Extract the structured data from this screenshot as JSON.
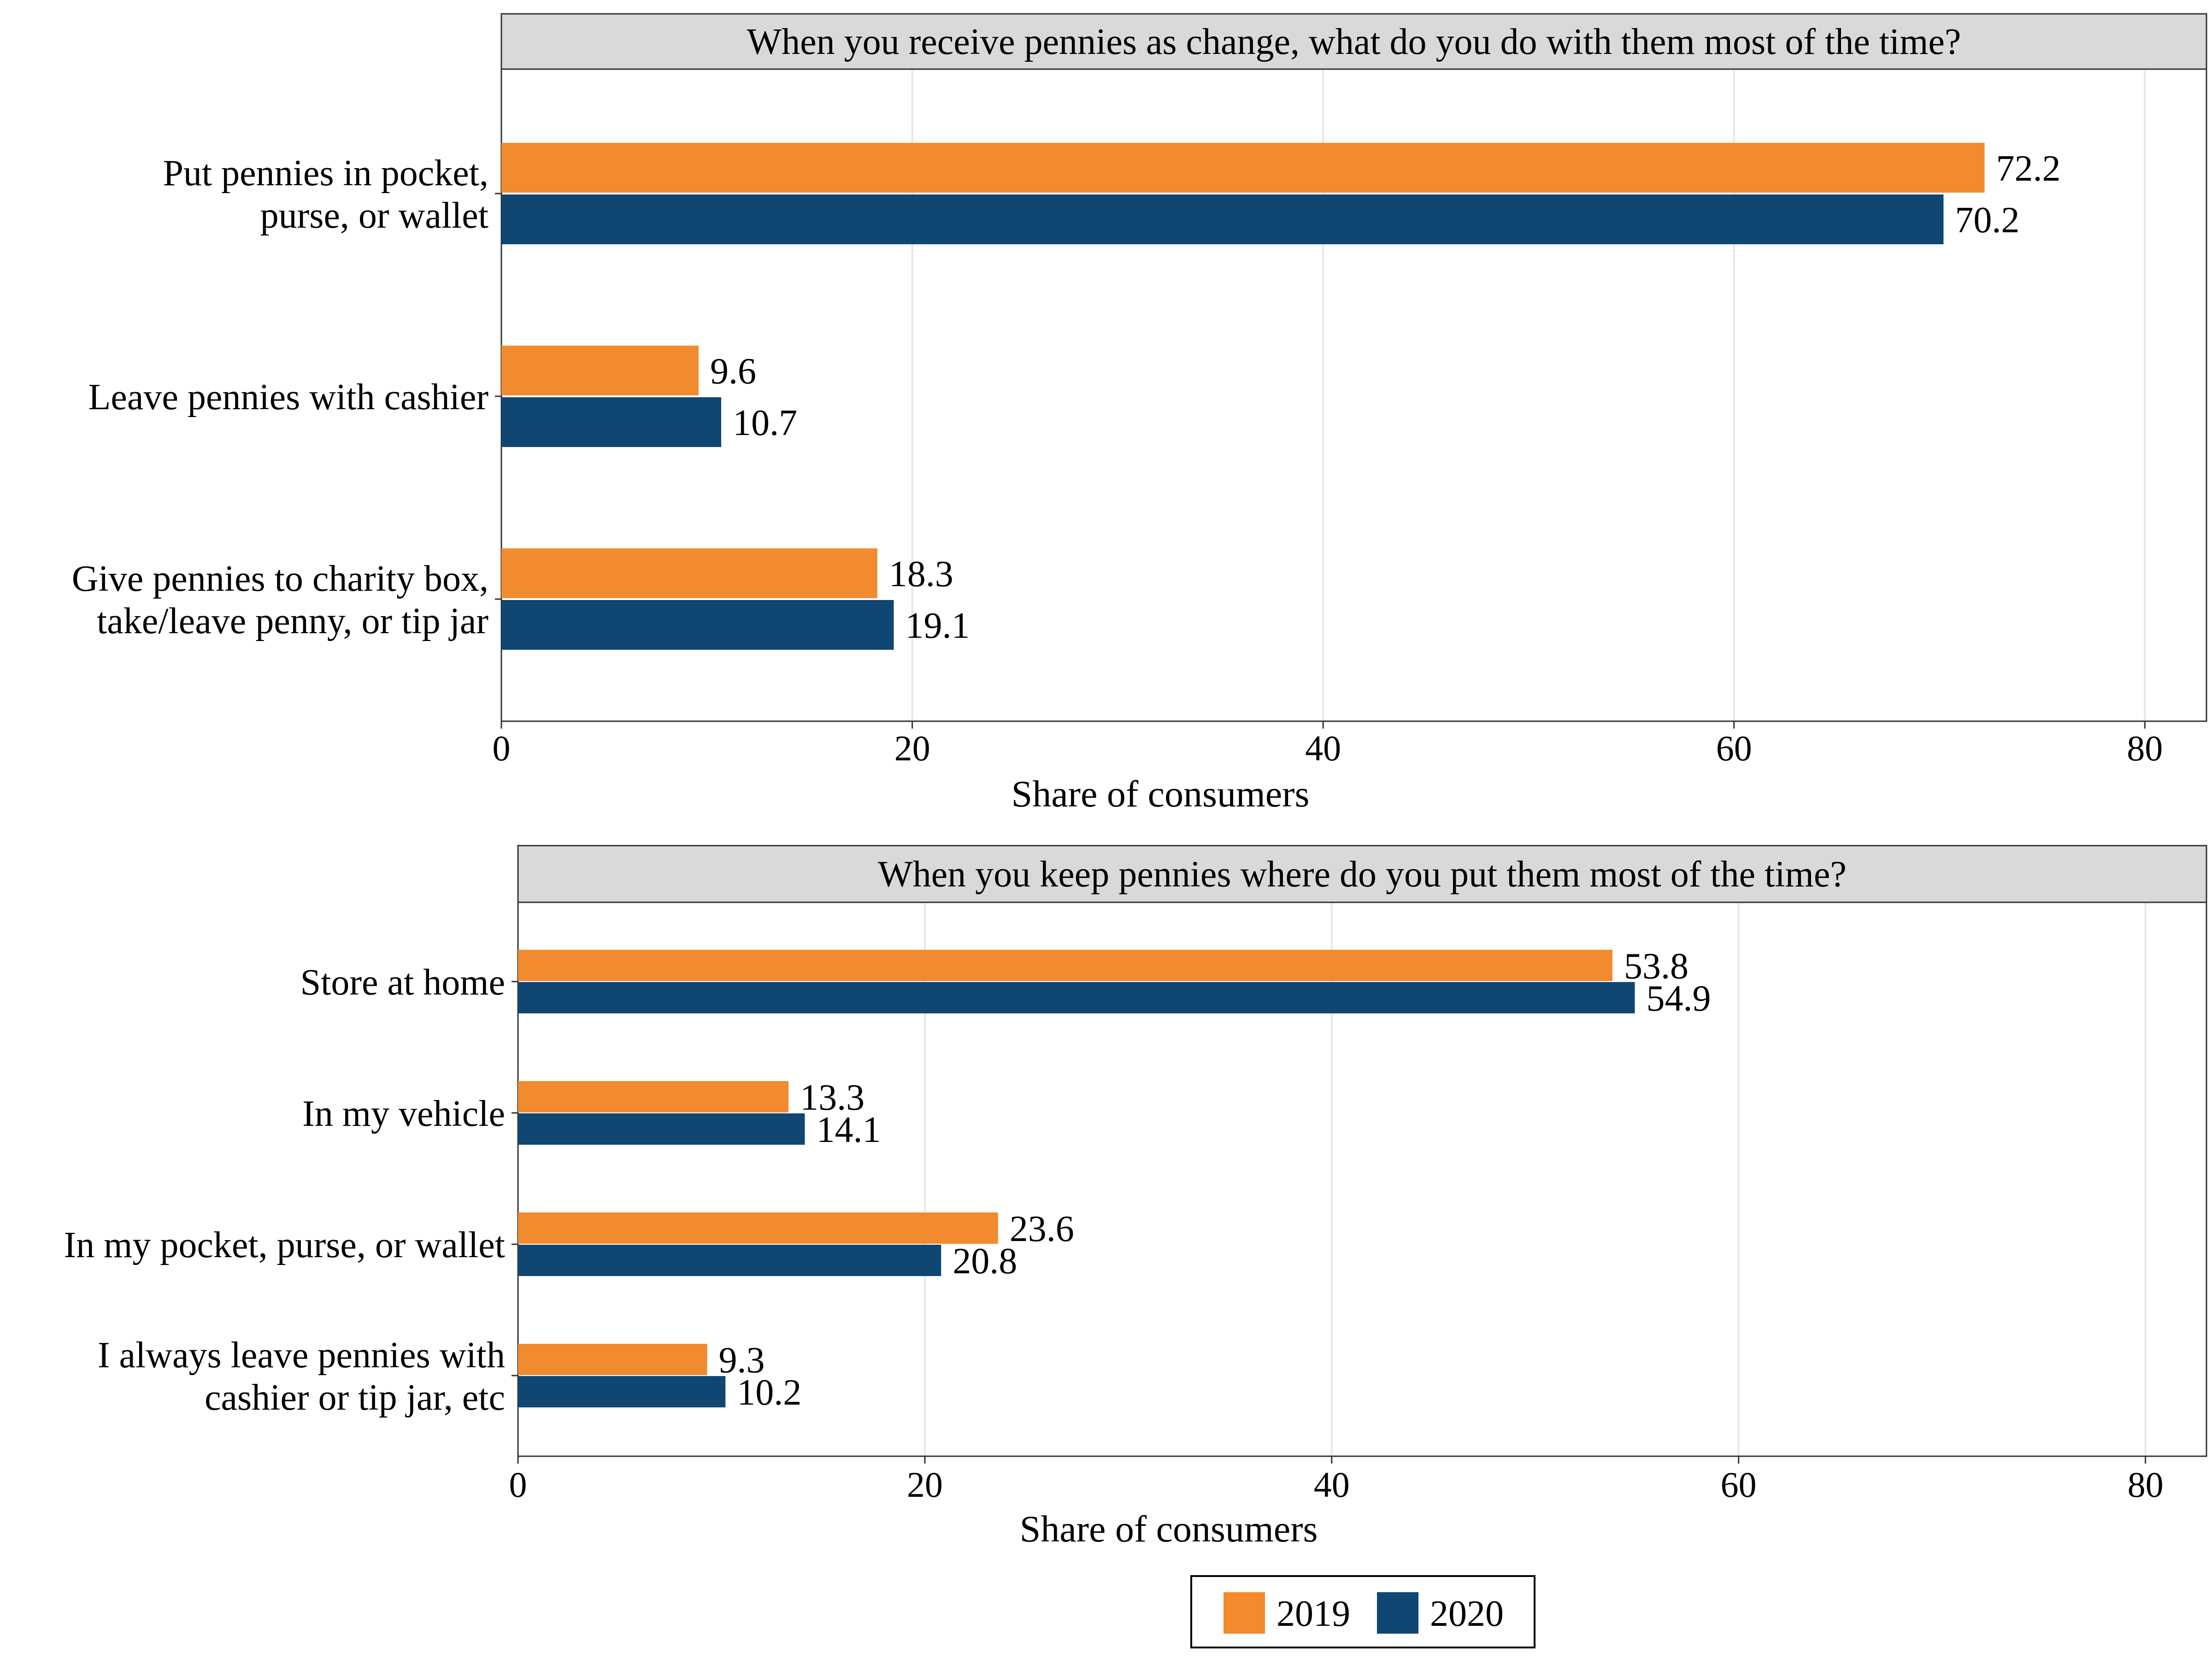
{
  "chart_data": [
    {
      "type": "bar",
      "orientation": "horizontal",
      "title": "When you receive pennies as change, what do you do with them most of the time?",
      "categories": [
        [
          "Put pennies in pocket,",
          "purse, or wallet"
        ],
        [
          "Leave pennies with cashier"
        ],
        [
          "Give pennies to charity box,",
          "take/leave penny, or tip jar"
        ]
      ],
      "series": [
        {
          "name": "2019",
          "values": [
            72.2,
            9.6,
            18.3
          ],
          "labels": [
            "72.2",
            "9.6",
            "18.3"
          ]
        },
        {
          "name": "2020",
          "values": [
            70.2,
            10.7,
            19.1
          ],
          "labels": [
            "70.2",
            "10.7",
            "19.1"
          ]
        }
      ],
      "xlabel": "Share of consumers",
      "ylabel": "",
      "xlim": [
        0,
        83
      ],
      "xticks": [
        "0",
        "20",
        "40",
        "60",
        "80"
      ],
      "grid": true
    },
    {
      "type": "bar",
      "orientation": "horizontal",
      "title": "When you keep pennies where do you put them most of the time?",
      "categories": [
        [
          "Store at home"
        ],
        [
          "In my vehicle"
        ],
        [
          "In my pocket, purse, or wallet"
        ],
        [
          "I always leave pennies with",
          "cashier or tip jar, etc"
        ]
      ],
      "series": [
        {
          "name": "2019",
          "values": [
            53.8,
            13.3,
            23.6,
            9.3
          ],
          "labels": [
            "53.8",
            "13.3",
            "23.6",
            "9.3"
          ]
        },
        {
          "name": "2020",
          "values": [
            54.9,
            14.1,
            20.8,
            10.2
          ],
          "labels": [
            "54.9",
            "14.1",
            "20.8",
            "10.2"
          ]
        }
      ],
      "xlabel": "Share of consumers",
      "ylabel": "",
      "xlim": [
        0,
        83
      ],
      "xticks": [
        "0",
        "20",
        "40",
        "60",
        "80"
      ],
      "grid": true
    }
  ],
  "legend": {
    "position": "bottom",
    "items": [
      {
        "name": "2019",
        "color": "#f28a30"
      },
      {
        "name": "2020",
        "color": "#104672"
      }
    ]
  },
  "colors": {
    "2019": "#f28a30",
    "2020": "#104672",
    "strip": "#d9d9d9",
    "grid": "#e6e6e6"
  }
}
